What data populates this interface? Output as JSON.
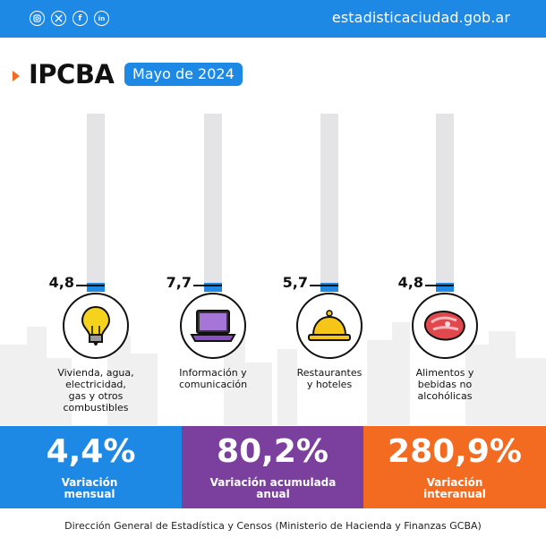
{
  "header": {
    "site": "estadisticaciudad.gob.ar",
    "social_icons": [
      "instagram-icon",
      "x-icon",
      "facebook-icon",
      "linkedin-icon"
    ]
  },
  "title": "IPCBA",
  "period": "Mayo de 2024",
  "chart_data": {
    "type": "bar",
    "categories": [
      "Vivienda, agua, electricidad, gas y otros combustibles",
      "Información y comunicación",
      "Restaurantes y hoteles",
      "Alimentos y bebidas no alcohólicas"
    ],
    "values": [
      4.8,
      7.7,
      5.7,
      4.8
    ],
    "value_labels": [
      "4,8",
      "7,7",
      "5,7",
      "4,8"
    ],
    "icons": [
      "lightbulb-icon",
      "laptop-icon",
      "service-bell-icon",
      "steak-icon"
    ],
    "colors": {
      "bar": "#1e88e5",
      "track": "#e4e4e6"
    }
  },
  "summary": [
    {
      "value": "4,4%",
      "label": "Variación mensual",
      "color": "#1e88e5"
    },
    {
      "value": "80,2%",
      "label": "Variación acumulada anual",
      "color": "#7b3f9e"
    },
    {
      "value": "280,9%",
      "label": "Variación interanual",
      "color": "#f26b21"
    }
  ],
  "footer": "Dirección General de Estadística y Censos (Ministerio de Hacienda y Finanzas GCBA)"
}
